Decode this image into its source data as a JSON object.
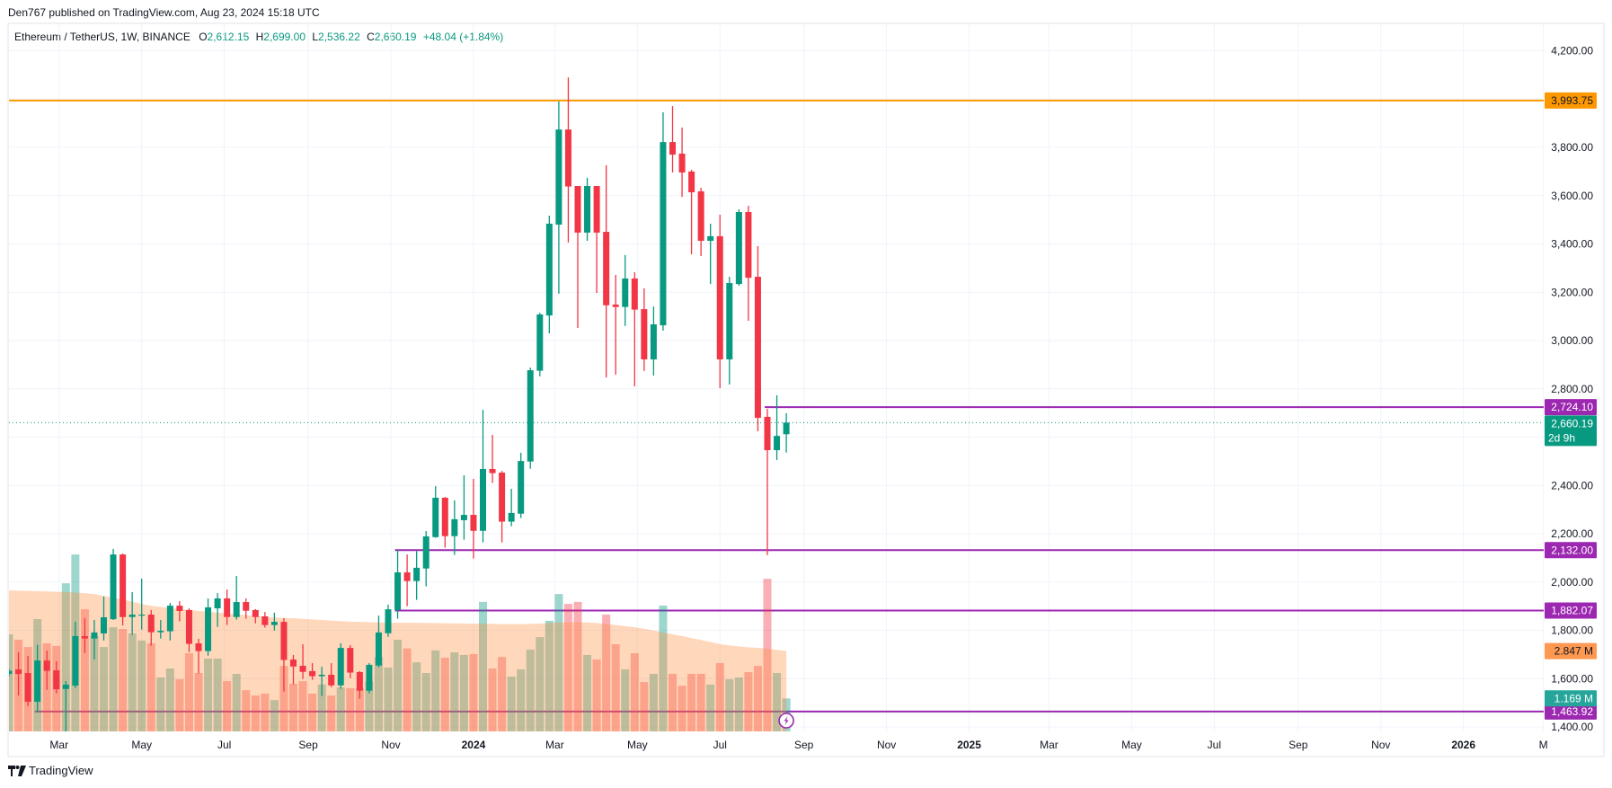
{
  "header": {
    "published": "Den767 published on TradingView.com, Aug 23, 2024 15:18 UTC"
  },
  "legend": {
    "symbol": "Ethereum / TetherUS, 1W, BINANCE",
    "o_label": "O",
    "o": "2,612.15",
    "h_label": "H",
    "h": "2,699.00",
    "l_label": "L",
    "l": "2,536.22",
    "c_label": "C",
    "c": "2,660.19",
    "change": "+48.04 (+1.84%)"
  },
  "footer": {
    "brand": "TradingView",
    "logo_icon": "tradingview-logo-icon"
  },
  "colors": {
    "up": "#089981",
    "down": "#f23645",
    "resistance": "#ff9800",
    "levels": "#9c27b0",
    "volume_ma": "#ff9850",
    "grid": "#f0f3fa"
  },
  "chart_data": {
    "type": "candlestick",
    "symbol": "ETHUSDT",
    "interval": "1W",
    "ylim": [
      1400,
      4200
    ],
    "grid": true,
    "y_ticks": [
      {
        "value": 4200,
        "label": "4,200.00"
      },
      {
        "value": 3800,
        "label": "3,800.00"
      },
      {
        "value": 3600,
        "label": "3,600.00"
      },
      {
        "value": 3400,
        "label": "3,400.00"
      },
      {
        "value": 3200,
        "label": "3,200.00"
      },
      {
        "value": 3000,
        "label": "3,000.00"
      },
      {
        "value": 2800,
        "label": "2,800.00"
      },
      {
        "value": 2400,
        "label": "2,400.00"
      },
      {
        "value": 2200,
        "label": "2,200.00"
      },
      {
        "value": 2000,
        "label": "2,000.00"
      },
      {
        "value": 1800,
        "label": "1,800.00"
      },
      {
        "value": 1600,
        "label": "1,600.00"
      },
      {
        "value": 1400,
        "label": "1,400.00"
      }
    ],
    "x_ticks": [
      {
        "date": "2023-03-01",
        "label": "Mar"
      },
      {
        "date": "2023-05-01",
        "label": "May"
      },
      {
        "date": "2023-07-01",
        "label": "Jul"
      },
      {
        "date": "2023-09-01",
        "label": "Sep"
      },
      {
        "date": "2023-11-01",
        "label": "Nov"
      },
      {
        "date": "2024-01-01",
        "label": "2024",
        "year": true
      },
      {
        "date": "2024-03-01",
        "label": "Mar"
      },
      {
        "date": "2024-05-01",
        "label": "May"
      },
      {
        "date": "2024-07-01",
        "label": "Jul"
      },
      {
        "date": "2024-09-01",
        "label": "Sep"
      },
      {
        "date": "2024-11-01",
        "label": "Nov"
      },
      {
        "date": "2025-01-01",
        "label": "2025",
        "year": true
      },
      {
        "date": "2025-03-01",
        "label": "Mar"
      },
      {
        "date": "2025-05-01",
        "label": "May"
      },
      {
        "date": "2025-07-01",
        "label": "Jul"
      },
      {
        "date": "2025-09-01",
        "label": "Sep"
      },
      {
        "date": "2025-11-01",
        "label": "Nov"
      },
      {
        "date": "2026-01-01",
        "label": "2026",
        "year": true
      },
      {
        "date": "2026-03-01",
        "label": "M"
      }
    ],
    "candle_fields": [
      "date",
      "open",
      "high",
      "low",
      "close",
      "volume_M"
    ],
    "candles": [
      [
        "2023-01-23",
        1620,
        1640,
        1610,
        1632,
        3.44
      ],
      [
        "2023-01-30",
        1638,
        1709,
        1530,
        1619,
        3.25
      ],
      [
        "2023-02-06",
        1623,
        1694,
        1486,
        1504,
        2.99
      ],
      [
        "2023-02-13",
        1504,
        1740,
        1460,
        1675,
        3.98
      ],
      [
        "2023-02-20",
        1675,
        1716,
        1554,
        1632,
        3.12
      ],
      [
        "2023-02-27",
        1634,
        1672,
        1539,
        1556,
        3.03
      ],
      [
        "2023-03-06",
        1557,
        1590,
        1368,
        1575,
        5.25
      ],
      [
        "2023-03-13",
        1571,
        1836,
        1561,
        1776,
        6.27
      ],
      [
        "2023-03-20",
        1776,
        1850,
        1706,
        1766,
        4.33
      ],
      [
        "2023-03-27",
        1766,
        1843,
        1679,
        1791,
        3.38
      ],
      [
        "2023-04-03",
        1787,
        1940,
        1758,
        1854,
        2.99
      ],
      [
        "2023-04-10",
        1846,
        2137,
        1843,
        2114,
        3.69
      ],
      [
        "2023-04-17",
        2114,
        2118,
        1820,
        1855,
        3.63
      ],
      [
        "2023-04-24",
        1855,
        1958,
        1781,
        1865,
        3.47
      ],
      [
        "2023-05-01",
        1862,
        2014,
        1803,
        1865,
        3.22
      ],
      [
        "2023-05-08",
        1865,
        1884,
        1736,
        1792,
        3.12
      ],
      [
        "2023-05-15",
        1792,
        1843,
        1766,
        1798,
        1.91
      ],
      [
        "2023-05-22",
        1796,
        1913,
        1758,
        1902,
        2.23
      ],
      [
        "2023-05-29",
        1902,
        1921,
        1837,
        1880,
        1.85
      ],
      [
        "2023-06-05",
        1884,
        1891,
        1710,
        1744,
        2.77
      ],
      [
        "2023-06-12",
        1746,
        1765,
        1621,
        1714,
        2.07
      ],
      [
        "2023-06-19",
        1714,
        1932,
        1695,
        1895,
        2.58
      ],
      [
        "2023-06-26",
        1891,
        1954,
        1814,
        1932,
        2.58
      ],
      [
        "2023-07-03",
        1932,
        1969,
        1822,
        1855,
        1.78
      ],
      [
        "2023-07-10",
        1855,
        2025,
        1844,
        1917,
        2.04
      ],
      [
        "2023-07-17",
        1917,
        1932,
        1848,
        1881,
        1.46
      ],
      [
        "2023-07-24",
        1884,
        1888,
        1829,
        1855,
        1.27
      ],
      [
        "2023-07-31",
        1858,
        1876,
        1811,
        1822,
        1.34
      ],
      [
        "2023-08-07",
        1822,
        1873,
        1799,
        1835,
        1.11
      ],
      [
        "2023-08-14",
        1835,
        1850,
        1546,
        1677,
        2.32
      ],
      [
        "2023-08-21",
        1679,
        1698,
        1576,
        1650,
        1.69
      ],
      [
        "2023-08-28",
        1653,
        1742,
        1598,
        1628,
        1.78
      ],
      [
        "2023-09-04",
        1631,
        1664,
        1595,
        1610,
        1.34
      ],
      [
        "2023-09-11",
        1610,
        1649,
        1528,
        1616,
        1.66
      ],
      [
        "2023-09-18",
        1616,
        1664,
        1565,
        1572,
        1.27
      ],
      [
        "2023-09-25",
        1572,
        1746,
        1558,
        1727,
        1.56
      ],
      [
        "2023-10-02",
        1727,
        1739,
        1602,
        1625,
        1.53
      ],
      [
        "2023-10-09",
        1627,
        1631,
        1517,
        1550,
        1.53
      ],
      [
        "2023-10-16",
        1550,
        1664,
        1539,
        1657,
        1.78
      ],
      [
        "2023-10-23",
        1654,
        1861,
        1647,
        1791,
        2.64
      ],
      [
        "2023-10-30",
        1788,
        1906,
        1773,
        1887,
        2.26
      ],
      [
        "2023-11-06",
        1884,
        2133,
        1848,
        2040,
        3.25
      ],
      [
        "2023-11-13",
        2040,
        2114,
        1900,
        2004,
        2.94
      ],
      [
        "2023-11-20",
        2004,
        2128,
        1926,
        2059,
        2.45
      ],
      [
        "2023-11-27",
        2056,
        2211,
        1982,
        2189,
        2.07
      ],
      [
        "2023-12-04",
        2186,
        2397,
        2183,
        2349,
        2.87
      ],
      [
        "2023-12-11",
        2349,
        2352,
        2142,
        2190,
        2.61
      ],
      [
        "2023-12-18",
        2190,
        2338,
        2112,
        2260,
        2.8
      ],
      [
        "2023-12-25",
        2256,
        2442,
        2175,
        2278,
        2.71
      ],
      [
        "2024-01-01",
        2278,
        2427,
        2097,
        2212,
        2.74
      ],
      [
        "2024-01-08",
        2212,
        2713,
        2164,
        2468,
        4.59
      ],
      [
        "2024-01-15",
        2468,
        2609,
        2410,
        2451,
        2.23
      ],
      [
        "2024-01-22",
        2453,
        2460,
        2164,
        2250,
        2.64
      ],
      [
        "2024-01-29",
        2250,
        2386,
        2231,
        2286,
        1.94
      ],
      [
        "2024-02-05",
        2283,
        2535,
        2265,
        2501,
        2.2
      ],
      [
        "2024-02-12",
        2499,
        2888,
        2469,
        2877,
        2.9
      ],
      [
        "2024-02-19",
        2875,
        3115,
        2852,
        3108,
        3.34
      ],
      [
        "2024-02-26",
        3104,
        3517,
        3030,
        3484,
        3.92
      ],
      [
        "2024-03-04",
        3480,
        3990,
        3194,
        3874,
        4.87
      ],
      [
        "2024-03-11",
        3874,
        4090,
        3406,
        3638,
        4.52
      ],
      [
        "2024-03-18",
        3640,
        3640,
        3052,
        3447,
        4.59
      ],
      [
        "2024-03-25",
        3447,
        3674,
        3413,
        3640,
        2.71
      ],
      [
        "2024-04-01",
        3640,
        3640,
        3197,
        3447,
        2.55
      ],
      [
        "2024-04-08",
        3450,
        3726,
        2847,
        3146,
        4.14
      ],
      [
        "2024-04-15",
        3149,
        3272,
        2859,
        3139,
        3.09
      ],
      [
        "2024-04-22",
        3139,
        3354,
        3060,
        3257,
        2.2
      ],
      [
        "2024-04-29",
        3257,
        3283,
        2810,
        3128,
        2.77
      ],
      [
        "2024-05-06",
        3130,
        3216,
        2874,
        2922,
        1.75
      ],
      [
        "2024-05-13",
        2922,
        3141,
        2855,
        3067,
        2.04
      ],
      [
        "2024-05-20",
        3063,
        3945,
        3041,
        3822,
        4.46
      ],
      [
        "2024-05-27",
        3822,
        3971,
        3696,
        3770,
        2.04
      ],
      [
        "2024-06-03",
        3774,
        3882,
        3595,
        3696,
        1.62
      ],
      [
        "2024-06-10",
        3700,
        3707,
        3357,
        3614,
        2.04
      ],
      [
        "2024-06-17",
        3618,
        3633,
        3350,
        3413,
        2.04
      ],
      [
        "2024-06-24",
        3413,
        3484,
        3234,
        3432,
        1.66
      ],
      [
        "2024-07-01",
        3432,
        3521,
        2803,
        2922,
        2.42
      ],
      [
        "2024-07-08",
        2922,
        3264,
        2818,
        3238,
        1.85
      ],
      [
        "2024-07-15",
        3234,
        3543,
        3227,
        3532,
        1.91
      ],
      [
        "2024-07-22",
        3532,
        3558,
        3082,
        3260,
        2.1
      ],
      [
        "2024-07-29",
        3264,
        3391,
        2624,
        2680,
        2.32
      ],
      [
        "2024-08-05",
        2684,
        2717,
        2111,
        2546,
        5.41
      ],
      [
        "2024-08-12",
        2546,
        2773,
        2505,
        2605,
        2.07
      ],
      [
        "2024-08-19",
        2612,
        2699,
        2536,
        2660.19,
        1.169
      ]
    ],
    "volume_ma": [
      5.0,
      4.99,
      4.98,
      4.97,
      4.96,
      4.95,
      4.94,
      4.92,
      4.9,
      4.87,
      4.8,
      4.74,
      4.67,
      4.6,
      4.52,
      4.45,
      4.41,
      4.37,
      4.33,
      4.3,
      4.27,
      4.24,
      4.21,
      4.18,
      4.15,
      4.12,
      4.09,
      4.06,
      4.04,
      4.02,
      4.01,
      3.99,
      3.97,
      3.95,
      3.93,
      3.91,
      3.89,
      3.88,
      3.87,
      3.86,
      3.85,
      3.85,
      3.85,
      3.85,
      3.84,
      3.84,
      3.83,
      3.83,
      3.82,
      3.82,
      3.82,
      3.81,
      3.8,
      3.8,
      3.8,
      3.81,
      3.82,
      3.84,
      3.86,
      3.87,
      3.87,
      3.86,
      3.84,
      3.8,
      3.77,
      3.73,
      3.69,
      3.64,
      3.58,
      3.5,
      3.44,
      3.38,
      3.31,
      3.24,
      3.17,
      3.09,
      3.05,
      3.01,
      2.98,
      2.96,
      2.93,
      2.89,
      2.847
    ],
    "horizontal_lines": [
      {
        "price": 3993.75,
        "label": "3,993.75",
        "color": "#ff9800",
        "text_color": "#131722",
        "from_date": null
      },
      {
        "price": 2724.1,
        "label": "2,724.10",
        "color": "#9c27b0",
        "text_color": "#ffffff",
        "from_date": "2024-08-05"
      },
      {
        "price": 2132.0,
        "label": "2,132.00",
        "color": "#9c27b0",
        "text_color": "#ffffff",
        "from_date": "2023-11-06"
      },
      {
        "price": 1882.07,
        "label": "1,882.07",
        "color": "#9c27b0",
        "text_color": "#ffffff",
        "from_date": "2023-11-06"
      },
      {
        "price": 1463.92,
        "label": "1,463.92",
        "color": "#9c27b0",
        "text_color": "#ffffff",
        "from_date": "2023-02-13"
      }
    ],
    "last_price": {
      "value": 2660.19,
      "label": "2,660.19",
      "countdown": "2d 9h",
      "color": "#089981"
    },
    "volume_labels": [
      {
        "value": 2.847,
        "label": "2.847 M",
        "color": "#ff9850",
        "text_color": "#131722"
      },
      {
        "value": 1.169,
        "label": "1.169 M",
        "color": "#26a69a",
        "text_color": "#ffffff"
      }
    ],
    "marker_icon": "lightning-icon"
  }
}
